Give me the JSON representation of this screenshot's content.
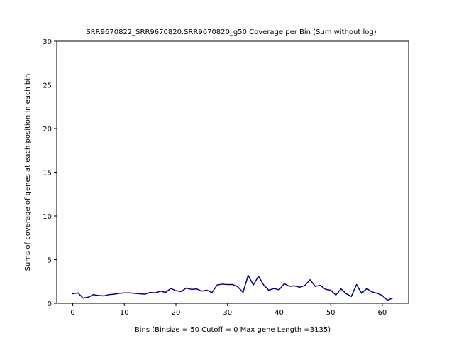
{
  "chart_data": {
    "type": "line",
    "title": "SRR9670822_SRR9670820.SRR9670820_g50 Coverage per Bin (Sum without log)",
    "xlabel": "Bins  (Binsize = 50 Cutoff = 0 Max gene Length =3135)",
    "ylabel": "Sums of coverage of genes at each position in each bin",
    "xlim": [
      -3.1,
      65.1
    ],
    "ylim": [
      0,
      30
    ],
    "xticks": [
      0,
      10,
      20,
      30,
      40,
      50,
      60
    ],
    "yticks": [
      0,
      5,
      10,
      15,
      20,
      25,
      30
    ],
    "grid": false,
    "series": [
      {
        "color": "#000080",
        "x": [
          0,
          1,
          2,
          3,
          4,
          5,
          6,
          7,
          8,
          9,
          10,
          11,
          12,
          13,
          14,
          15,
          16,
          17,
          18,
          19,
          20,
          21,
          22,
          23,
          24,
          25,
          26,
          27,
          28,
          29,
          30,
          31,
          32,
          33,
          34,
          35,
          36,
          37,
          38,
          39,
          40,
          41,
          42,
          43,
          44,
          45,
          46,
          47,
          48,
          49,
          50,
          51,
          52,
          53,
          54,
          55,
          56,
          57,
          58,
          59,
          60,
          61,
          62
        ],
        "values": [
          1.1,
          1.2,
          0.6,
          0.7,
          1.0,
          0.9,
          0.85,
          1.0,
          1.05,
          1.15,
          1.2,
          1.2,
          1.15,
          1.1,
          1.05,
          1.25,
          1.2,
          1.4,
          1.25,
          1.7,
          1.45,
          1.35,
          1.75,
          1.6,
          1.65,
          1.4,
          1.5,
          1.25,
          2.1,
          2.2,
          2.15,
          2.15,
          1.9,
          1.25,
          3.2,
          2.1,
          3.1,
          2.1,
          1.5,
          1.7,
          1.55,
          2.25,
          1.95,
          2.0,
          1.85,
          2.05,
          2.7,
          1.95,
          2.05,
          1.6,
          1.5,
          0.95,
          1.65,
          1.1,
          0.8,
          2.15,
          1.15,
          1.7,
          1.3,
          1.15,
          0.9,
          0.35,
          0.6
        ]
      }
    ]
  }
}
